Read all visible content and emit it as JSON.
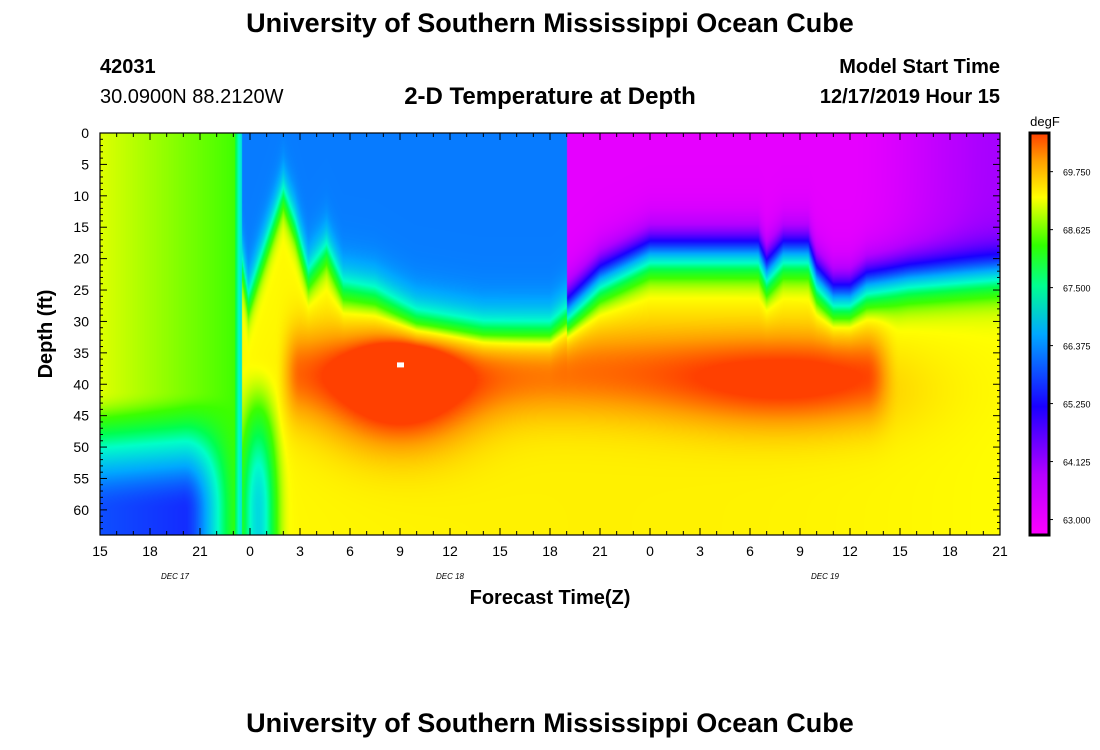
{
  "header": {
    "title_top": "University of Southern Mississippi Ocean Cube",
    "title_bottom": "University of Southern Mississippi Ocean Cube",
    "station_id": "42031",
    "location": "30.0900N 88.2120W",
    "model_start_label": "Model Start Time",
    "model_start_value": "12/17/2019 Hour 15"
  },
  "chart_data": {
    "type": "heatmap",
    "title": "2-D Temperature at Depth",
    "xlabel": "Forecast Time(Z)",
    "ylabel": "Depth (ft)",
    "x_tick_labels": [
      "15",
      "18",
      "21",
      "0",
      "3",
      "6",
      "9",
      "12",
      "15",
      "18",
      "21",
      "0",
      "3",
      "6",
      "9",
      "12",
      "15",
      "18",
      "21"
    ],
    "x_range_hours": [
      0,
      54
    ],
    "date_labels": [
      {
        "text": "DEC 17",
        "hour": 4.5
      },
      {
        "text": "DEC 18",
        "hour": 21
      },
      {
        "text": "DEC 19",
        "hour": 43.5
      }
    ],
    "y_tick_labels": [
      0,
      5,
      10,
      15,
      20,
      25,
      30,
      35,
      40,
      45,
      50,
      55,
      60
    ],
    "ylim": [
      0,
      64
    ],
    "colorbar": {
      "unit": "degF",
      "tick_labels": [
        "69.750",
        "68.625",
        "67.500",
        "66.375",
        "65.250",
        "64.125",
        "63.000"
      ],
      "range": [
        62.7,
        70.5
      ]
    }
  },
  "colors": {
    "scale": [
      "#ff00ff",
      "#8b00ff",
      "#0000ff",
      "#00a0ff",
      "#00ffff",
      "#00ff00",
      "#ffff00",
      "#ffa500",
      "#ff4500"
    ],
    "hot_spot": "#ffffff"
  }
}
